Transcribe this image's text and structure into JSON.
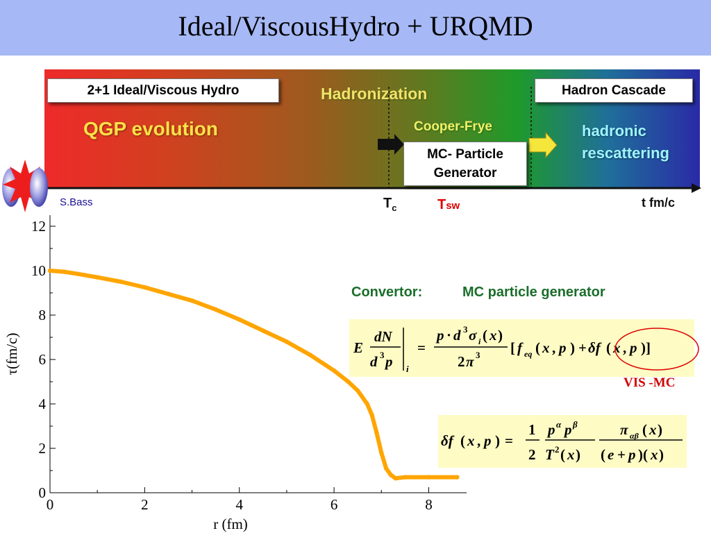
{
  "title": "Ideal/ViscousHydro + URQMD",
  "banner": {
    "box_left": "2+1 Ideal/Viscous Hydro",
    "box_right": "Hadron Cascade",
    "hadronization": "Hadronization",
    "qgp": "QGP evolution",
    "cooper_frye": "Cooper-Frye",
    "mc_box_line1": "MC- Particle",
    "mc_box_line2": "Generator",
    "hadronic_line1": "hadronic",
    "hadronic_line2": "rescattering",
    "credit": "S.Bass",
    "tc": "T",
    "tc_sub": "c",
    "tsw": "T",
    "tsw_sub": "sw",
    "time_axis": "t fm/c"
  },
  "convertor": {
    "label": "Convertor:",
    "value": "MC particle generator",
    "vis_mc": "VIS -MC"
  },
  "colors": {
    "title_bar": "#a6b8f5",
    "curve": "#ffa500",
    "vis_mc": "#d00000",
    "convertor_text": "#1a6e2a",
    "equation_bg": "#fffbc5"
  },
  "chart_data": {
    "type": "scatter",
    "xlabel": "r (fm)",
    "ylabel": "τ(fm/c)",
    "xlim": [
      0,
      8.8
    ],
    "ylim": [
      0,
      12.5
    ],
    "xticks": [
      "0",
      "2",
      "4",
      "6",
      "8"
    ],
    "yticks": [
      "0",
      "2",
      "4",
      "6",
      "8",
      "10",
      "12"
    ],
    "x": [
      0,
      0.3,
      0.6,
      1.0,
      1.5,
      2.0,
      2.5,
      3.0,
      3.5,
      4.0,
      4.5,
      5.0,
      5.5,
      6.0,
      6.3,
      6.5,
      6.7,
      6.8,
      6.9,
      7.0,
      7.1,
      7.2,
      7.3,
      7.5,
      8.0,
      8.6
    ],
    "y": [
      10.0,
      9.95,
      9.85,
      9.7,
      9.5,
      9.25,
      8.95,
      8.65,
      8.25,
      7.8,
      7.3,
      6.8,
      6.2,
      5.5,
      5.0,
      4.6,
      4.0,
      3.5,
      2.7,
      1.8,
      1.1,
      0.8,
      0.65,
      0.7,
      0.7,
      0.7
    ]
  }
}
